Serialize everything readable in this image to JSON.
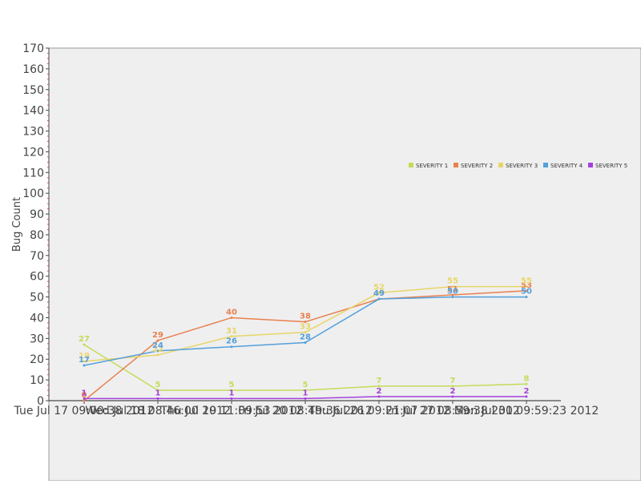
{
  "chart_data": {
    "type": "line",
    "title": "",
    "xlabel": "",
    "ylabel": "Bug Count",
    "ylim": [
      0,
      170
    ],
    "yticks": [
      0,
      10,
      20,
      30,
      40,
      50,
      60,
      70,
      80,
      90,
      100,
      110,
      120,
      130,
      140,
      150,
      160,
      170
    ],
    "categories": [
      "Tue Jul 17 09:00:38 2012",
      "Wed Jul 18 08:46:00 2012",
      "Thu Jul 19 11:09:53 2012",
      "Fri Jul 20 08:49:36 2012",
      "Thu Jul 26 09:21:07 2012",
      "Fri Jul 27 08:59:38 2012",
      "Mon Jul 30 09:59:23 2012"
    ],
    "grid": false,
    "legend_position": "right",
    "series": [
      {
        "name": "severity 1",
        "color": "#c3dc59",
        "values": [
          27,
          5,
          5,
          5,
          7,
          7,
          8
        ]
      },
      {
        "name": "severity 2",
        "color": "#e9804f",
        "values": [
          0,
          29,
          40,
          38,
          49,
          51,
          53
        ]
      },
      {
        "name": "severity 3",
        "color": "#e8d566",
        "values": [
          19,
          22,
          31,
          33,
          52,
          55,
          55
        ]
      },
      {
        "name": "severity 4",
        "color": "#53a0dc",
        "values": [
          17,
          24,
          26,
          28,
          49,
          50,
          50
        ]
      },
      {
        "name": "severity 5",
        "color": "#a442dc",
        "values": [
          1,
          1,
          1,
          1,
          2,
          2,
          2
        ]
      }
    ]
  }
}
